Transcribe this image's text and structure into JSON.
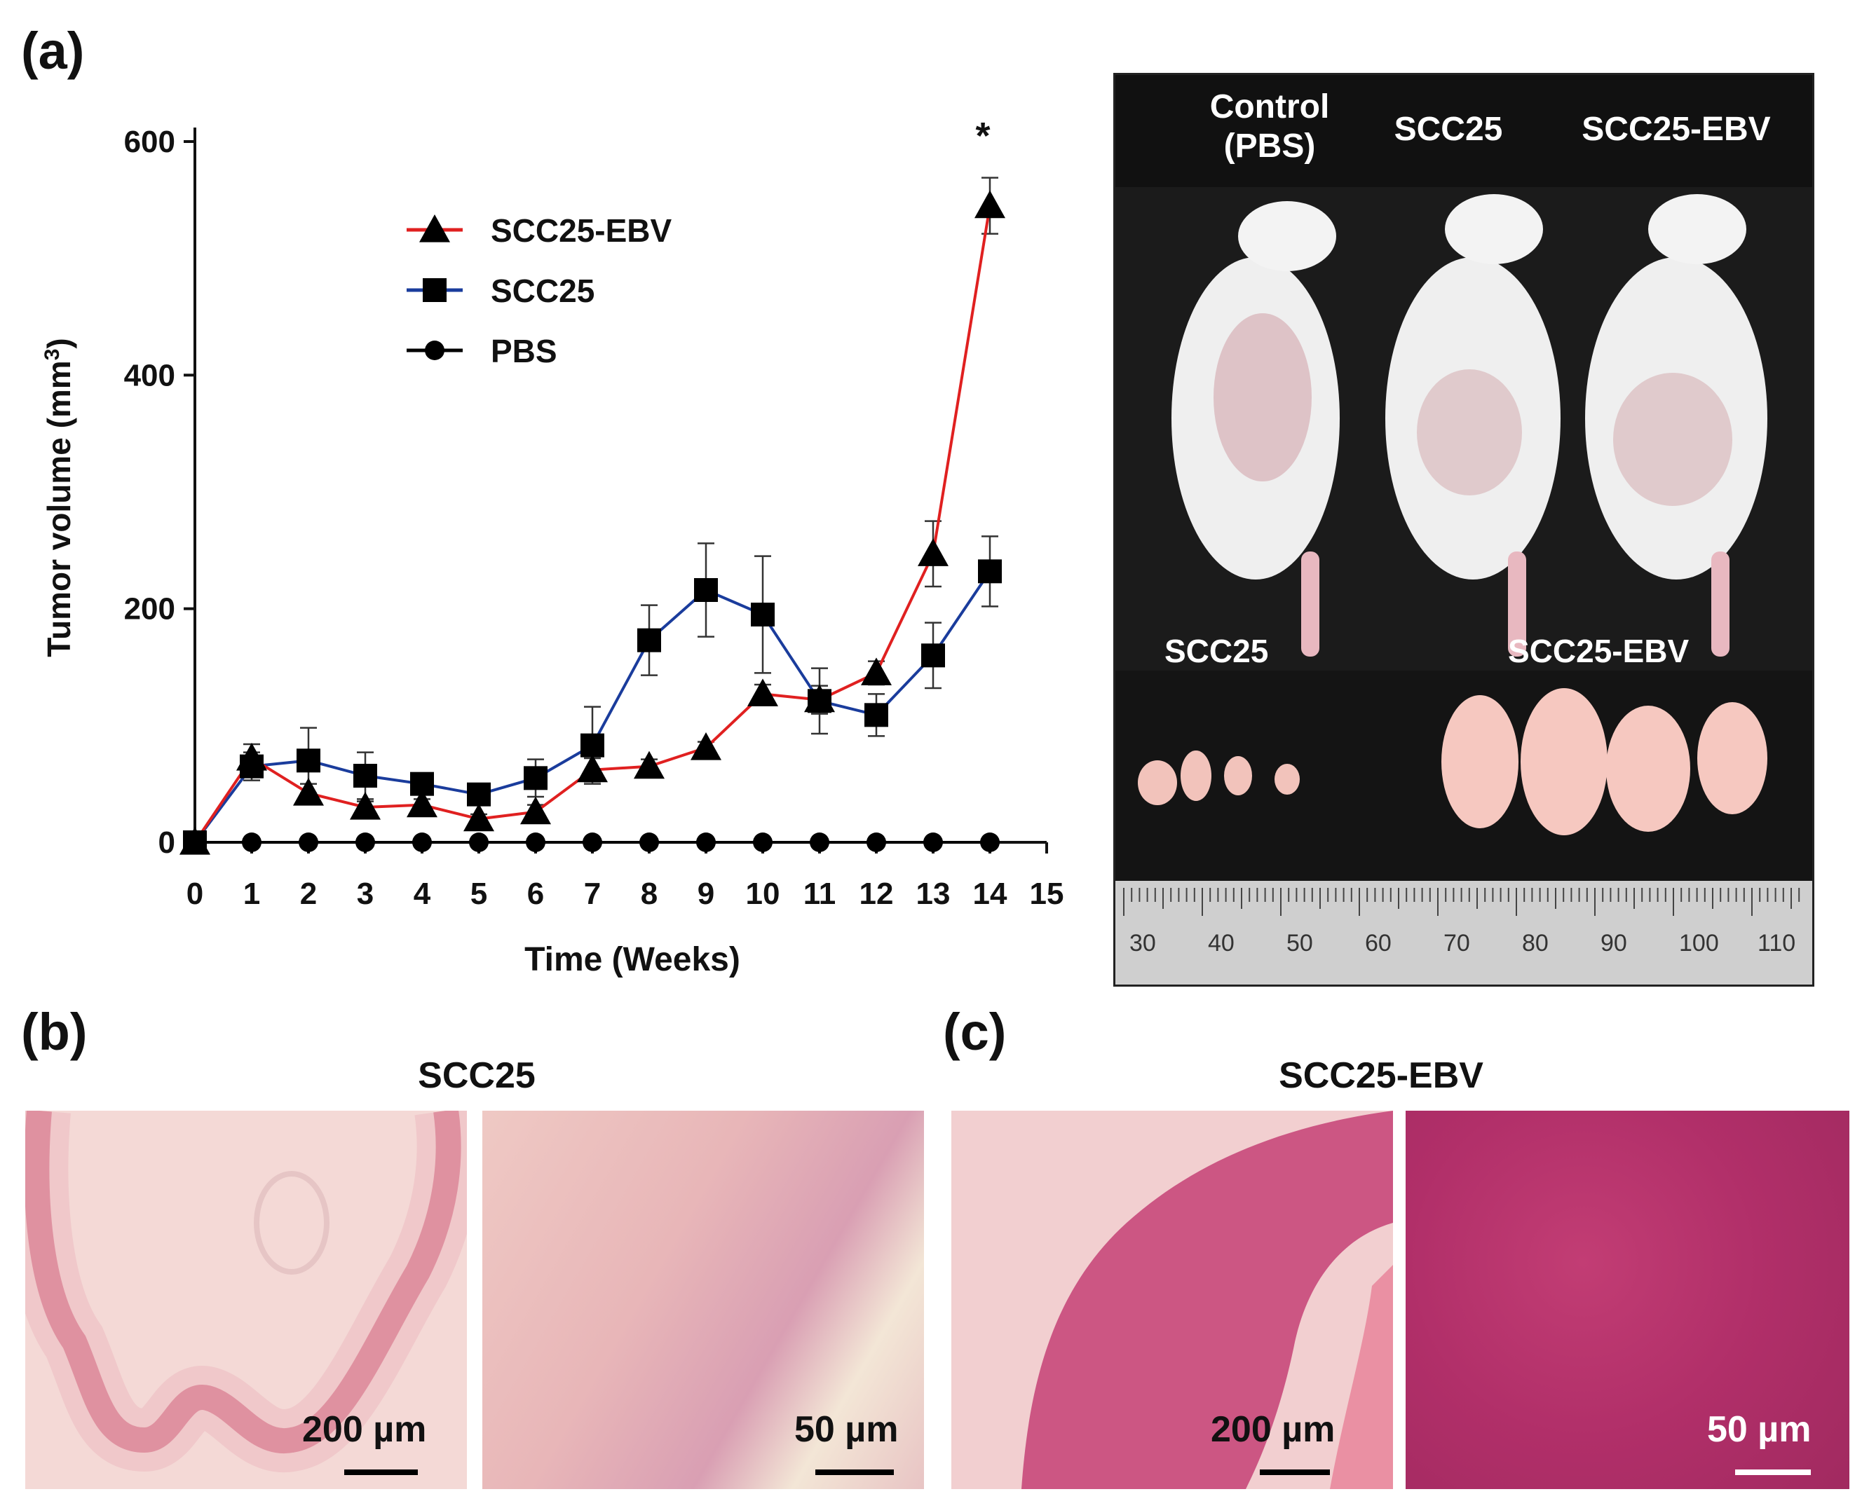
{
  "panels": {
    "a_label": "(a)",
    "b_label": "(b)",
    "c_label": "(c)"
  },
  "chart_data": {
    "type": "line",
    "xlabel": "Time (Weeks)",
    "ylabel": "Tumor volume (mm³)",
    "xlim": [
      0,
      15
    ],
    "ylim": [
      0,
      600
    ],
    "x_ticks": [
      0,
      1,
      2,
      3,
      4,
      5,
      6,
      7,
      8,
      9,
      10,
      11,
      12,
      13,
      14,
      15
    ],
    "y_ticks": [
      0,
      200,
      400,
      600
    ],
    "x": [
      0,
      1,
      2,
      3,
      4,
      5,
      6,
      7,
      8,
      9,
      10,
      11,
      12,
      13,
      14
    ],
    "legend_position": "top-left",
    "annotation": "*",
    "series": [
      {
        "name": "SCC25-EBV",
        "color": "#e02020",
        "marker": "triangle",
        "values": [
          0,
          72,
          42,
          30,
          32,
          20,
          26,
          62,
          65,
          81,
          127,
          122,
          145,
          247,
          545
        ],
        "errors": [
          0,
          12,
          8,
          5,
          5,
          4,
          6,
          10,
          6,
          5,
          8,
          12,
          10,
          28,
          24
        ]
      },
      {
        "name": "SCC25",
        "color": "#1a3c9c",
        "marker": "square",
        "values": [
          0,
          65,
          70,
          57,
          50,
          41,
          55,
          83,
          173,
          216,
          195,
          121,
          109,
          160,
          232
        ],
        "errors": [
          0,
          12,
          28,
          20,
          8,
          5,
          16,
          33,
          30,
          40,
          50,
          28,
          18,
          28,
          30
        ]
      },
      {
        "name": "PBS",
        "color": "#000000",
        "marker": "circle",
        "values": [
          0,
          0,
          0,
          0,
          0,
          0,
          0,
          0,
          0,
          0,
          0,
          0,
          0,
          0,
          0
        ],
        "errors": [
          0,
          0,
          0,
          0,
          0,
          0,
          0,
          0,
          0,
          0,
          0,
          0,
          0,
          0,
          0
        ]
      }
    ]
  },
  "mouse_photo": {
    "groups": [
      "Control\n(PBS)",
      "SCC25",
      "SCC25-EBV"
    ],
    "tumor_labels": [
      "SCC25",
      "SCC25-EBV"
    ],
    "ruler_ticks": [
      "30",
      "40",
      "50",
      "60",
      "70",
      "80",
      "90",
      "100",
      "110"
    ],
    "bg_color": "#111111"
  },
  "histology_b": {
    "title": "SCC25",
    "scale_left": "200 µm",
    "scale_right": "50 µm"
  },
  "histology_c": {
    "title": "SCC25-EBV",
    "scale_left": "200 µm",
    "scale_right": "50 µm"
  }
}
